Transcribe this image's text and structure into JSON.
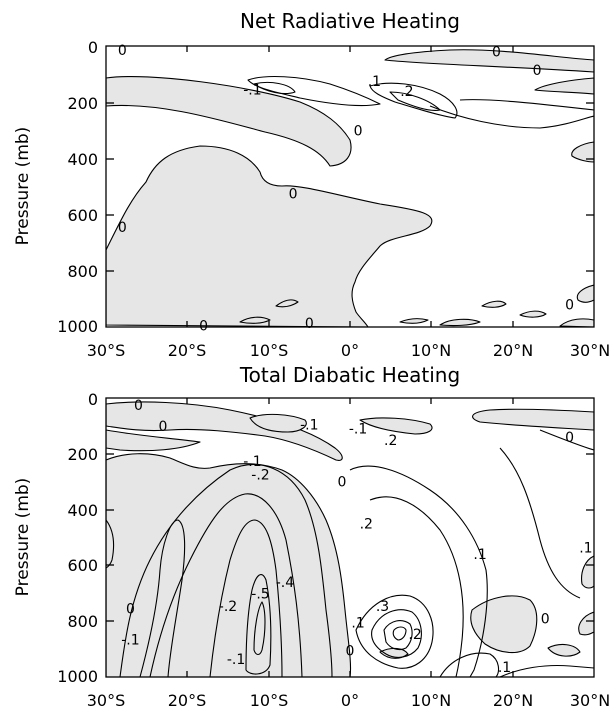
{
  "chart_data": [
    {
      "type": "contour",
      "title": "Net Radiative Heating",
      "ylabel": "Pressure (mb)",
      "x_ticks": [
        "30°S",
        "20°S",
        "10°S",
        "0°",
        "10°N",
        "20°N",
        "30°N"
      ],
      "x_values": [
        -30,
        -20,
        -10,
        0,
        10,
        20,
        30
      ],
      "xlim": [
        -30,
        30
      ],
      "y_ticks": [
        "0",
        "200",
        "400",
        "600",
        "800",
        "1000"
      ],
      "y_values": [
        0,
        200,
        400,
        600,
        800,
        1000
      ],
      "ylim": [
        1000,
        0
      ],
      "y_inverted": true,
      "shading": "negative values shaded light gray",
      "contour_labels": [
        {
          "text": "0",
          "x": -28,
          "y": 15
        },
        {
          "text": "-.1",
          "x": -12,
          "y": 155
        },
        {
          "text": ".1",
          "x": 3,
          "y": 125
        },
        {
          "text": ".2",
          "x": 7,
          "y": 160
        },
        {
          "text": "0",
          "x": 18,
          "y": 20
        },
        {
          "text": "0",
          "x": 23,
          "y": 85
        },
        {
          "text": "0",
          "x": 1,
          "y": 300
        },
        {
          "text": "0",
          "x": -7,
          "y": 525
        },
        {
          "text": "0",
          "x": -28,
          "y": 645
        },
        {
          "text": "0",
          "x": 27,
          "y": 920
        },
        {
          "text": "0",
          "x": -18,
          "y": 995
        },
        {
          "text": "0",
          "x": -5,
          "y": 985
        }
      ]
    },
    {
      "type": "contour",
      "title": "Total Diabatic Heating",
      "ylabel": "Pressure (mb)",
      "x_ticks": [
        "30°S",
        "20°S",
        "10°S",
        "0°",
        "10°N",
        "20°N",
        "30°N"
      ],
      "x_values": [
        -30,
        -20,
        -10,
        0,
        10,
        20,
        30
      ],
      "xlim": [
        -30,
        30
      ],
      "y_ticks": [
        "0",
        "200",
        "400",
        "600",
        "800",
        "1000"
      ],
      "y_values": [
        0,
        200,
        400,
        600,
        800,
        1000
      ],
      "ylim": [
        1000,
        0
      ],
      "y_inverted": true,
      "shading": "negative values shaded light gray",
      "contour_labels": [
        {
          "text": "0",
          "x": -26,
          "y": 25
        },
        {
          "text": "0",
          "x": -23,
          "y": 100
        },
        {
          "text": "-.1",
          "x": -5,
          "y": 95
        },
        {
          "text": "-.1",
          "x": 1,
          "y": 110
        },
        {
          "text": ".2",
          "x": 5,
          "y": 150
        },
        {
          "text": "0",
          "x": 27,
          "y": 140
        },
        {
          "text": "-.1",
          "x": -12,
          "y": 225
        },
        {
          "text": "-.2",
          "x": -11,
          "y": 275
        },
        {
          "text": "0",
          "x": -1,
          "y": 300
        },
        {
          "text": ".2",
          "x": 2,
          "y": 450
        },
        {
          "text": ".1",
          "x": 16,
          "y": 560
        },
        {
          "text": ".1",
          "x": 29,
          "y": 535
        },
        {
          "text": "-.4",
          "x": -8,
          "y": 660
        },
        {
          "text": "-.5",
          "x": -11,
          "y": 700
        },
        {
          "text": "-.2",
          "x": -15,
          "y": 745
        },
        {
          "text": "0",
          "x": -27,
          "y": 755
        },
        {
          "text": "-.1",
          "x": -27,
          "y": 865
        },
        {
          "text": ".3",
          "x": 4,
          "y": 745
        },
        {
          "text": ".1",
          "x": 1,
          "y": 805
        },
        {
          "text": ".2",
          "x": 8,
          "y": 845
        },
        {
          "text": "0",
          "x": 24,
          "y": 790
        },
        {
          "text": "0",
          "x": 0,
          "y": 905
        },
        {
          "text": "-.1",
          "x": -14,
          "y": 935
        },
        {
          "text": ".1",
          "x": 19,
          "y": 965
        }
      ]
    }
  ]
}
